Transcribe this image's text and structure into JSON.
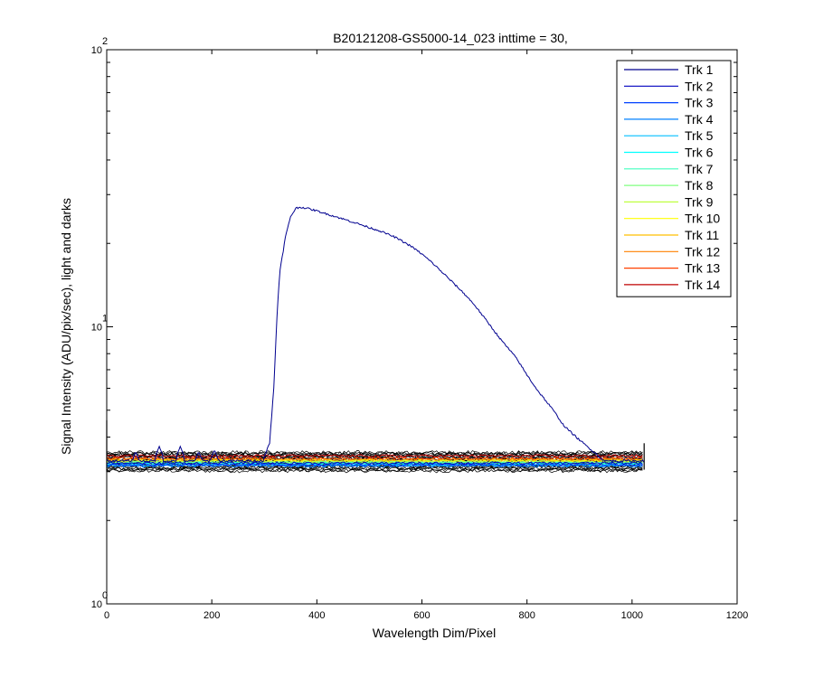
{
  "chart_data": {
    "type": "line",
    "title": "B20121208-GS5000-14_023 inttime = 30,",
    "xlabel": "Wavelength Dim/Pixel",
    "ylabel": "Signal Intensity (ADU/pix/sec), light and darks",
    "xlim": [
      0,
      1200
    ],
    "ylim": [
      1,
      100
    ],
    "yscale": "log",
    "x_ticks": [
      "0",
      "200",
      "400",
      "600",
      "800",
      "1000",
      "1200"
    ],
    "y_ticks": [
      {
        "base": "10",
        "exp": "0"
      },
      {
        "base": "10",
        "exp": "1"
      },
      {
        "base": "10",
        "exp": "2"
      }
    ],
    "legend_position": "top-right",
    "series": [
      {
        "name": "Trk 1",
        "color": "#00008f",
        "level": 3.28,
        "signal": [
          [
            300,
            3.4
          ],
          [
            310,
            3.8
          ],
          [
            318,
            6
          ],
          [
            325,
            12
          ],
          [
            330,
            16
          ],
          [
            340,
            21
          ],
          [
            350,
            25
          ],
          [
            360,
            26.8
          ],
          [
            370,
            27
          ],
          [
            380,
            26.8
          ],
          [
            400,
            26.2
          ],
          [
            420,
            25.5
          ],
          [
            450,
            24.5
          ],
          [
            480,
            23.5
          ],
          [
            500,
            22.8
          ],
          [
            520,
            22.2
          ],
          [
            550,
            21
          ],
          [
            580,
            19.5
          ],
          [
            600,
            18.3
          ],
          [
            620,
            17
          ],
          [
            650,
            15
          ],
          [
            680,
            13.2
          ],
          [
            700,
            12
          ],
          [
            720,
            10.7
          ],
          [
            750,
            9
          ],
          [
            780,
            7.7
          ],
          [
            800,
            6.7
          ],
          [
            820,
            5.9
          ],
          [
            850,
            5
          ],
          [
            870,
            4.4
          ],
          [
            900,
            3.9
          ],
          [
            930,
            3.5
          ],
          [
            945,
            3.3
          ]
        ]
      },
      {
        "name": "Trk 2",
        "color": "#0000bf",
        "level": 3.22
      },
      {
        "name": "Trk 3",
        "color": "#0040ff",
        "level": 3.18
      },
      {
        "name": "Trk 4",
        "color": "#0080ff",
        "level": 3.15
      },
      {
        "name": "Trk 5",
        "color": "#00bfff",
        "level": 3.17
      },
      {
        "name": "Trk 6",
        "color": "#00ffff",
        "level": 3.2
      },
      {
        "name": "Trk 7",
        "color": "#40ffbf",
        "level": 3.22
      },
      {
        "name": "Trk 8",
        "color": "#80ff80",
        "level": 3.24
      },
      {
        "name": "Trk 9",
        "color": "#bfff40",
        "level": 3.26
      },
      {
        "name": "Trk 10",
        "color": "#ffff00",
        "level": 3.28
      },
      {
        "name": "Trk 11",
        "color": "#ffbf00",
        "level": 3.3
      },
      {
        "name": "Trk 12",
        "color": "#ff8000",
        "level": 3.32
      },
      {
        "name": "Trk 13",
        "color": "#ff4000",
        "level": 3.35
      },
      {
        "name": "Trk 14",
        "color": "#bf0000",
        "level": 3.42
      }
    ],
    "dark_band": {
      "color": "#000000",
      "low": 3.02,
      "high": 3.52,
      "xmax": 1023
    }
  }
}
